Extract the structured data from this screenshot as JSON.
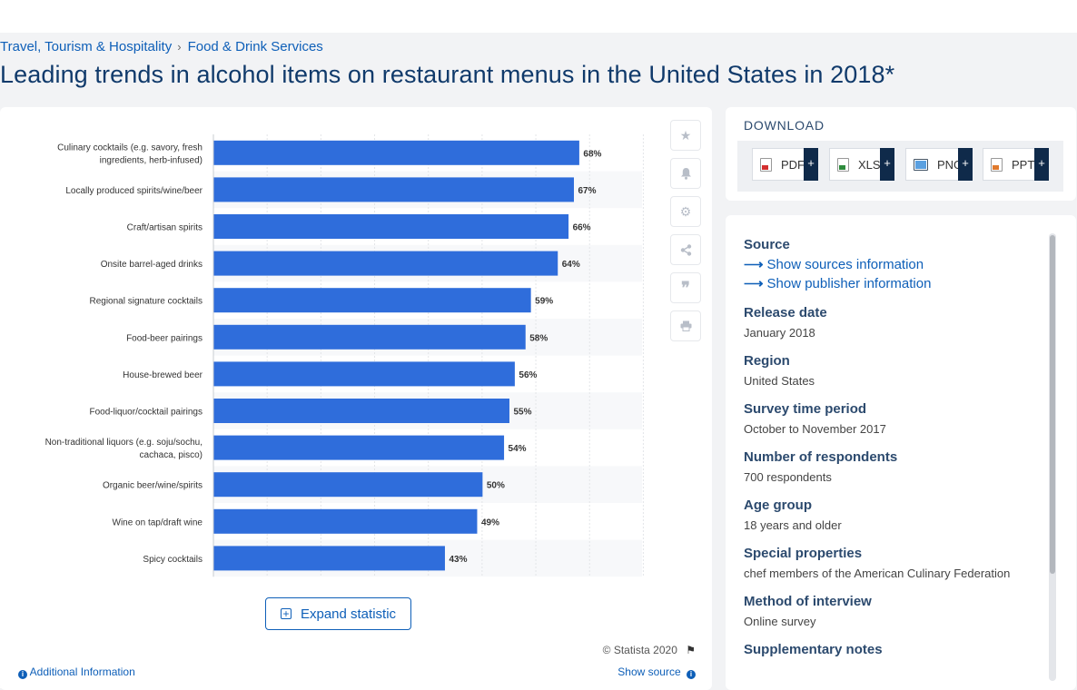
{
  "breadcrumb": {
    "items": [
      "Travel, Tourism & Hospitality",
      "Food & Drink Services"
    ],
    "separator": "›"
  },
  "page_title": "Leading trends in alcohol items on restaurant menus in the United States in 2018*",
  "chart_data": {
    "type": "bar",
    "orientation": "horizontal",
    "categories": [
      [
        "Culinary cocktails (e.g. savory, fresh",
        "ingredients, herb-infused)"
      ],
      [
        "Locally produced spirits/wine/beer"
      ],
      [
        "Craft/artisan spirits"
      ],
      [
        "Onsite barrel-aged drinks"
      ],
      [
        "Regional signature cocktails"
      ],
      [
        "Food-beer pairings"
      ],
      [
        "House-brewed beer"
      ],
      [
        "Food-liquor/cocktail pairings"
      ],
      [
        "Non-traditional liquors (e.g. soju/sochu,",
        "cachaca, pisco)"
      ],
      [
        "Organic beer/wine/spirits"
      ],
      [
        "Wine on tap/draft wine"
      ],
      [
        "Spicy cocktails"
      ]
    ],
    "values": [
      68,
      67,
      66,
      64,
      59,
      58,
      56,
      55,
      54,
      50,
      49,
      43
    ],
    "value_suffix": "%",
    "xlim": [
      0,
      80
    ],
    "grid": true,
    "bar_color": "#2f6ddb",
    "legend": "none"
  },
  "toolbar": {
    "icons": [
      "star-icon",
      "bell-icon",
      "gear-icon",
      "share-icon",
      "quote-icon",
      "print-icon"
    ]
  },
  "expand_label": "Expand statistic",
  "copyright": "© Statista 2020",
  "additional_info": "Additional Information",
  "show_source": "Show source",
  "download": {
    "title": "DOWNLOAD",
    "formats": [
      "PDF",
      "XLS",
      "PNG",
      "PPT"
    ]
  },
  "info": {
    "source_label": "Source",
    "show_sources": "Show sources information",
    "show_publisher": "Show publisher information",
    "release_date_label": "Release date",
    "release_date": "January 2018",
    "region_label": "Region",
    "region": "United States",
    "survey_period_label": "Survey time period",
    "survey_period": "October to November 2017",
    "respondents_label": "Number of respondents",
    "respondents": "700 respondents",
    "age_group_label": "Age group",
    "age_group": "18 years and older",
    "special_label": "Special properties",
    "special": "chef members of the American Culinary Federation",
    "method_label": "Method of interview",
    "method": "Online survey",
    "supplementary_label": "Supplementary notes"
  }
}
